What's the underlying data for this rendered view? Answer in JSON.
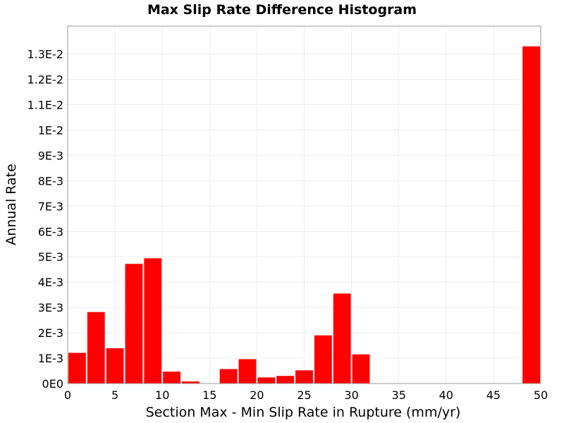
{
  "chart_data": {
    "type": "bar",
    "title": "Max Slip Rate Difference Histogram",
    "xlabel": "Section Max - Min Slip Rate in Rupture (mm/yr)",
    "ylabel": "Annual Rate",
    "xlim": [
      0,
      50
    ],
    "ylim": [
      0,
      0.0141
    ],
    "bin_width": 2,
    "x_ticks": [
      "0",
      "5",
      "10",
      "15",
      "20",
      "25",
      "30",
      "35",
      "40",
      "45",
      "50"
    ],
    "y_ticks": [
      "0E0",
      "1E-3",
      "2E-3",
      "3E-3",
      "4E-3",
      "5E-3",
      "6E-3",
      "7E-3",
      "8E-3",
      "9E-3",
      "1E-2",
      "1.1E-2",
      "1.2E-2",
      "1.3E-2"
    ],
    "grid": true,
    "bar_color": "#ff0000",
    "bars": [
      {
        "x": 1,
        "value": 0.00121
      },
      {
        "x": 3,
        "value": 0.00282
      },
      {
        "x": 5,
        "value": 0.00139
      },
      {
        "x": 7,
        "value": 0.00472
      },
      {
        "x": 9,
        "value": 0.00494
      },
      {
        "x": 11,
        "value": 0.00047
      },
      {
        "x": 13,
        "value": 8e-05
      },
      {
        "x": 17,
        "value": 0.00057
      },
      {
        "x": 19,
        "value": 0.00096
      },
      {
        "x": 21,
        "value": 0.00024
      },
      {
        "x": 23,
        "value": 0.0003
      },
      {
        "x": 25,
        "value": 0.00052
      },
      {
        "x": 27,
        "value": 0.0019
      },
      {
        "x": 29,
        "value": 0.00355
      },
      {
        "x": 31,
        "value": 0.00115
      },
      {
        "x": 49,
        "value": 0.0133
      }
    ]
  }
}
